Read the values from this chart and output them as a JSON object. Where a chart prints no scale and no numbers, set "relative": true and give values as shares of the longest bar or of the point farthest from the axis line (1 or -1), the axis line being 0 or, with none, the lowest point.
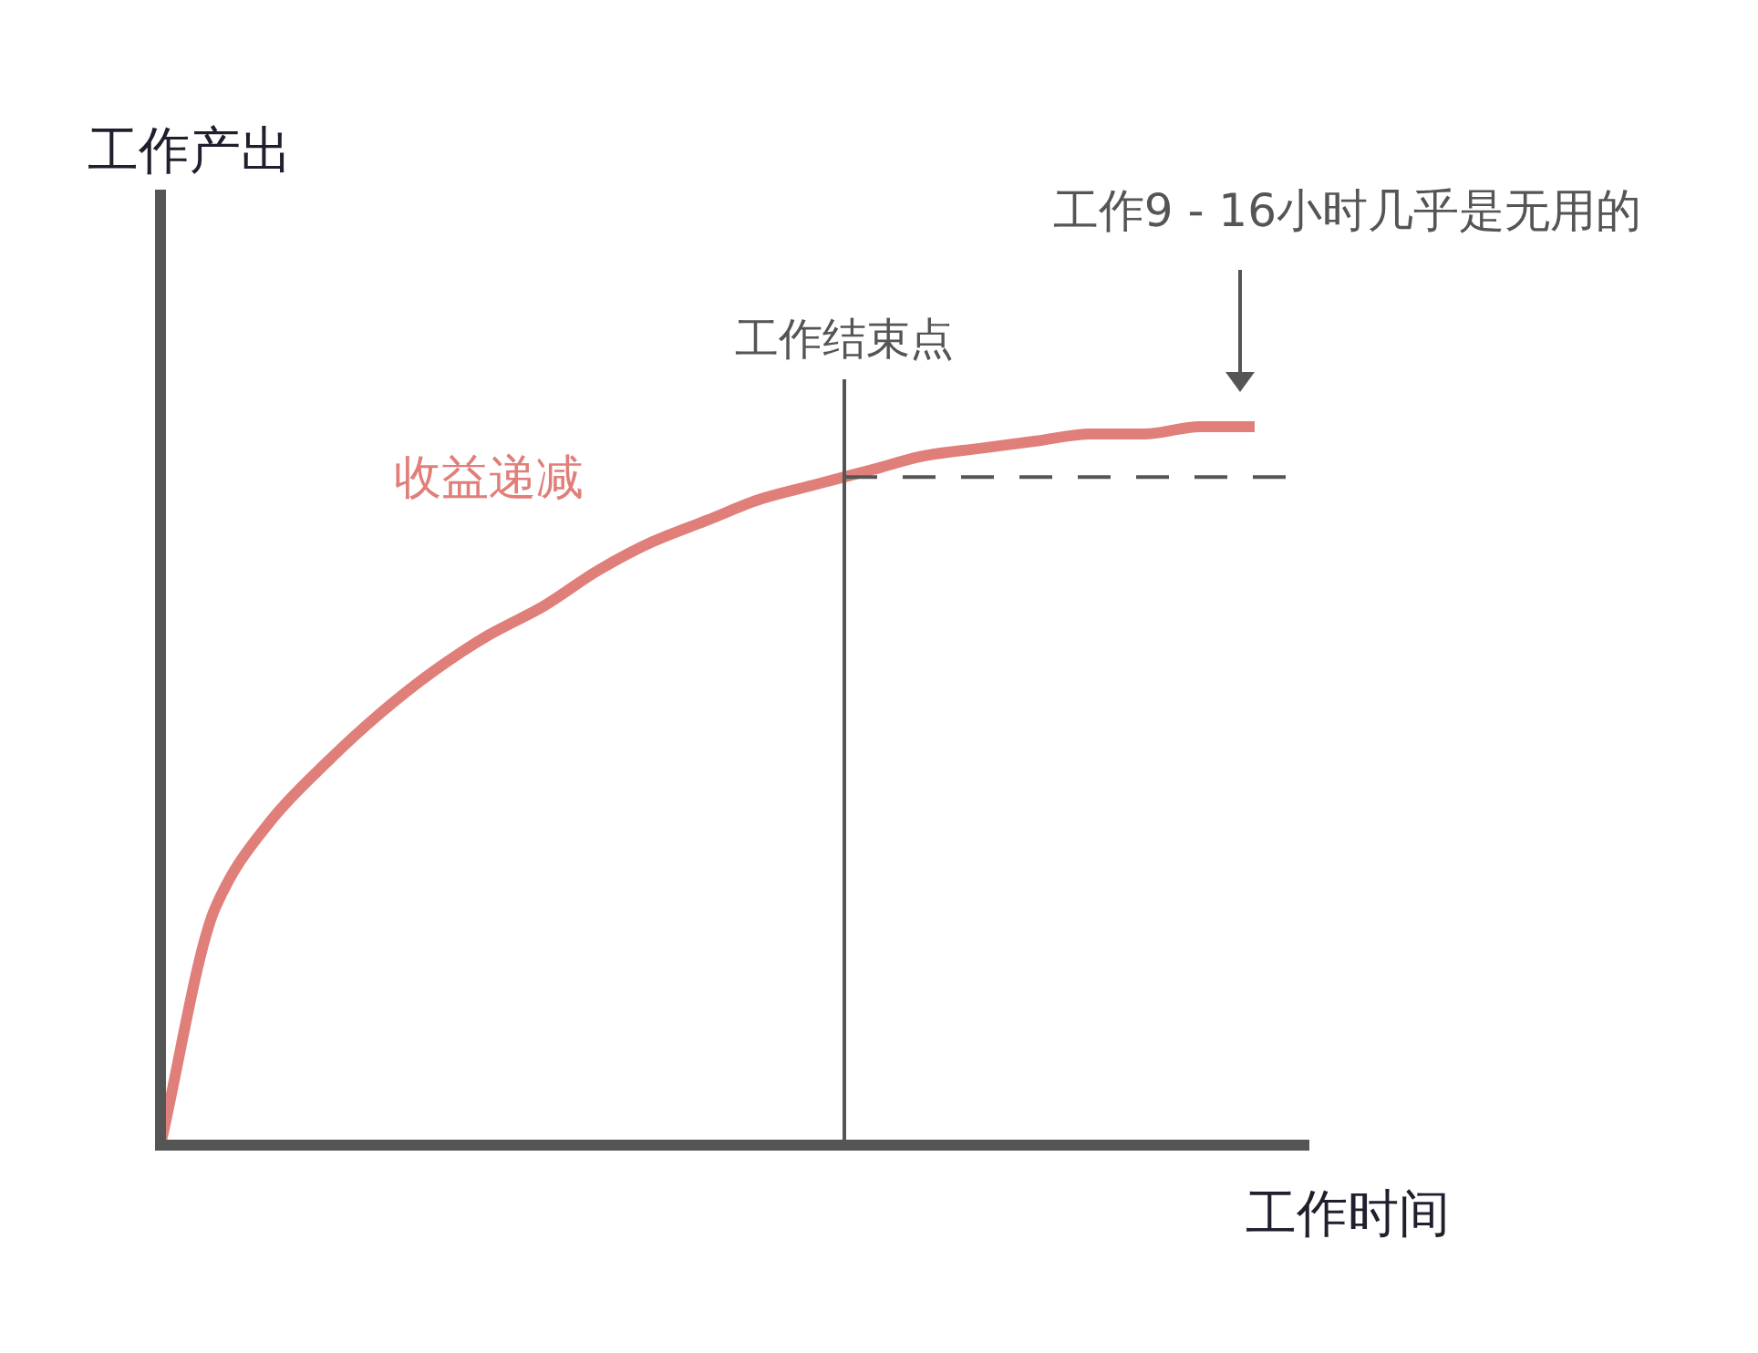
{
  "chart_data": {
    "type": "line",
    "relative": true,
    "xlabel": "工作时间",
    "ylabel": "工作产出",
    "categories": [
      null,
      null,
      null,
      null,
      null,
      null,
      null,
      null,
      null,
      null,
      null,
      null,
      null,
      null,
      null,
      null,
      null,
      null,
      null,
      null,
      null,
      null
    ],
    "series": [
      {
        "name": "收益递减",
        "color": "#e07f7a",
        "values": [
          0,
          0.33,
          0.45,
          0.53,
          0.6,
          0.66,
          0.71,
          0.75,
          0.8,
          0.84,
          0.87,
          0.9,
          0.92,
          0.94,
          0.96,
          0.97,
          0.98,
          0.99,
          0.99,
          1,
          1,
          null
        ]
      }
    ],
    "ref_lines": [
      {
        "axis": "y",
        "value": 0.93,
        "label": null,
        "color": "#555555",
        "line_style": "dashed"
      }
    ],
    "annotations": [
      "工作9 - 16小时几乎是无用的",
      "工作结束点"
    ]
  }
}
